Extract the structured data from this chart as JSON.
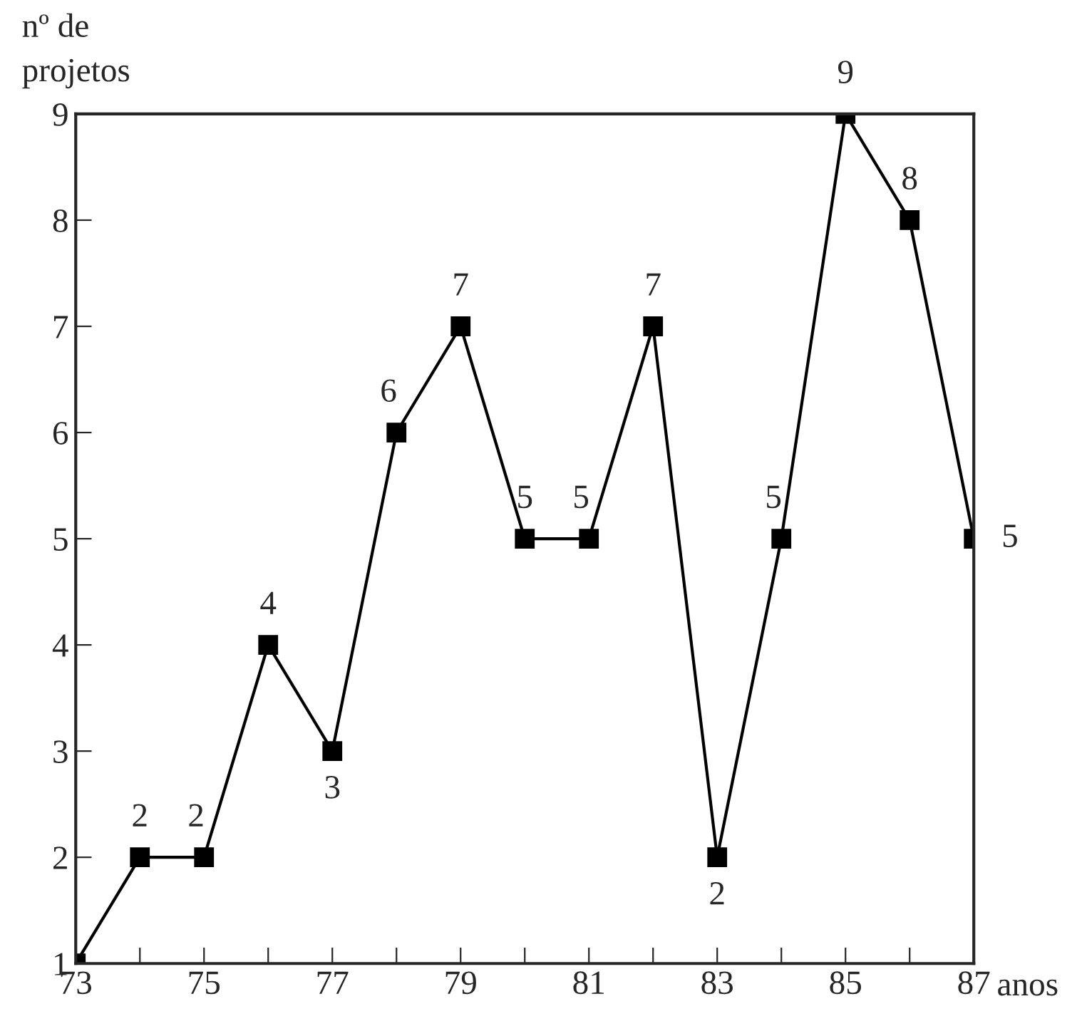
{
  "chart_data": {
    "type": "line",
    "xlabel": "anos",
    "ylabel": "nº de\nprojetos",
    "x": [
      73,
      74,
      75,
      76,
      77,
      78,
      79,
      80,
      81,
      82,
      83,
      84,
      85,
      86,
      87
    ],
    "series": [
      {
        "color": "#000000",
        "values": [
          1,
          2,
          2,
          4,
          3,
          6,
          7,
          5,
          5,
          7,
          2,
          5,
          9,
          8,
          5
        ],
        "value_labels": [
          null,
          "2",
          "2",
          "4",
          "3",
          "6",
          "7",
          "5",
          "5",
          "7",
          "2",
          "5",
          "9",
          "8",
          "5"
        ]
      }
    ],
    "xlim": [
      73,
      87
    ],
    "ylim": [
      1,
      9
    ],
    "xticks": [
      73,
      {
        "value": 74,
        "label": null
      },
      75,
      {
        "value": 76,
        "label": null
      },
      77,
      {
        "value": 78,
        "label": null
      },
      79,
      {
        "value": 80,
        "label": null
      },
      81,
      {
        "value": 82,
        "label": null
      },
      83,
      {
        "value": 84,
        "label": null
      },
      85,
      {
        "value": 86,
        "label": null
      },
      87
    ],
    "yticks": [
      1,
      2,
      3,
      4,
      5,
      6,
      7,
      8,
      9
    ],
    "marker": "square",
    "line_style": "solid",
    "grid": false,
    "legend": false
  }
}
